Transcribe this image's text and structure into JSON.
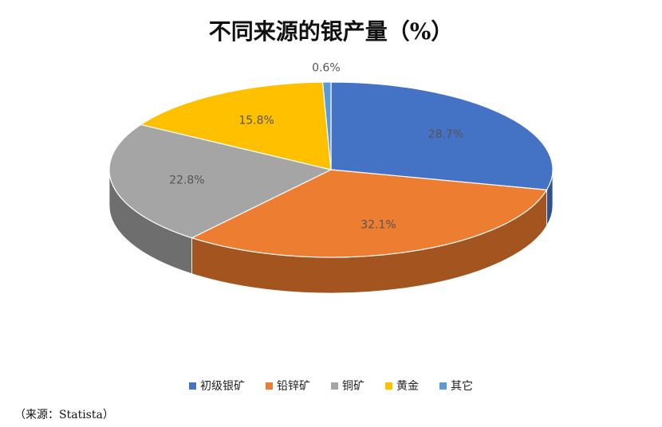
{
  "chart_data": {
    "type": "pie",
    "title": "不同来源的银产量（%）",
    "categories": [
      "初级银矿",
      "铅锌矿",
      "铜矿",
      "黄金",
      "其它"
    ],
    "values": [
      28.7,
      32.1,
      22.8,
      15.8,
      0.6
    ],
    "value_labels": [
      "28.7%",
      "32.1%",
      "22.8%",
      "15.8%",
      "0.6%"
    ],
    "colors": [
      "#4472C4",
      "#ED7D31",
      "#A5A5A5",
      "#FFC000",
      "#5B9BD5"
    ],
    "dark_colors": [
      "#2F528F",
      "#A4541E",
      "#6E6E6E",
      "#B08600",
      "#3A6E9E"
    ],
    "legend_position": "bottom"
  },
  "source": "（来源：Statista）"
}
